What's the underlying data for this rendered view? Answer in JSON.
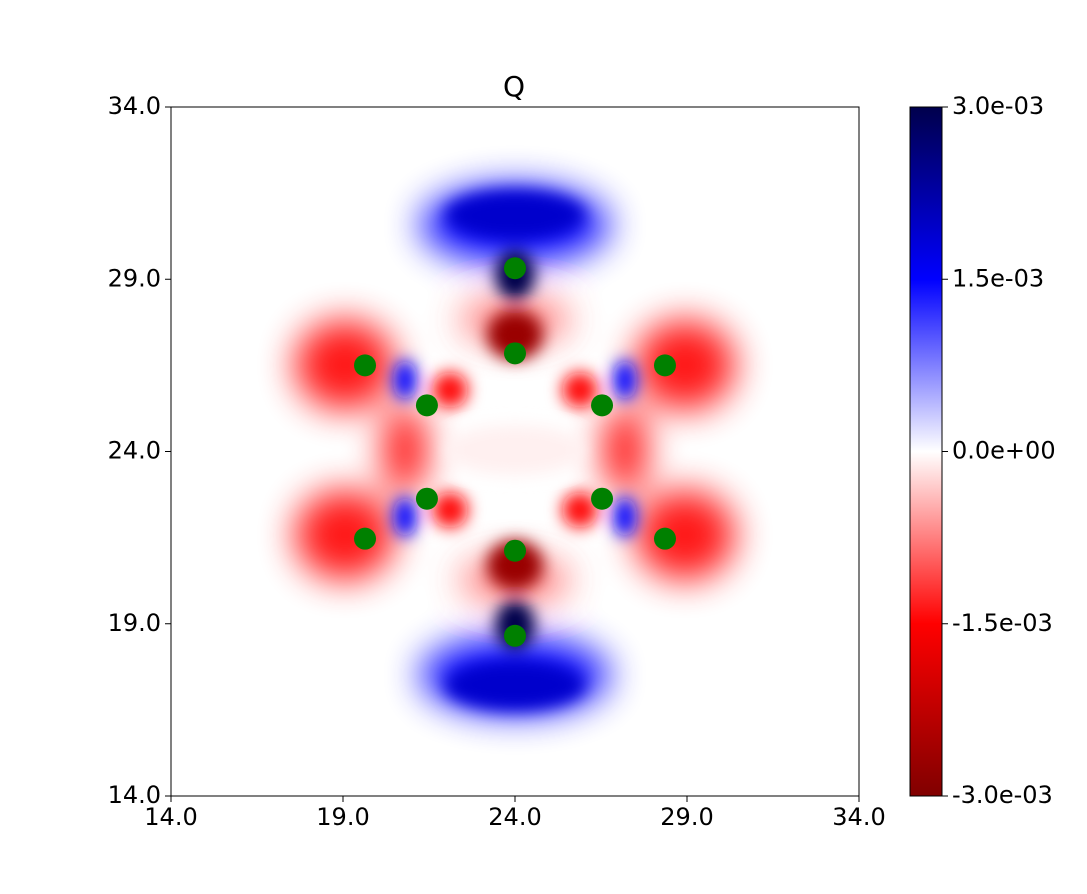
{
  "chart_data": {
    "type": "scatter",
    "title": "Q",
    "points_color": "#008000",
    "x": [
      24.0,
      24.0,
      19.64,
      28.36,
      21.44,
      26.53,
      21.44,
      26.53,
      19.64,
      28.36,
      24.0,
      24.0
    ],
    "values": [
      29.32,
      26.85,
      26.5,
      26.5,
      25.34,
      25.34,
      22.63,
      22.63,
      21.47,
      21.47,
      21.12,
      18.65
    ],
    "xlim": [
      14,
      34
    ],
    "ylim": [
      14,
      34
    ],
    "xticks": [
      {
        "value": 14,
        "label": "14.0"
      },
      {
        "value": 19,
        "label": "19.0"
      },
      {
        "value": 24,
        "label": "24.0"
      },
      {
        "value": 29,
        "label": "29.0"
      },
      {
        "value": 34,
        "label": "34.0"
      }
    ],
    "yticks": [
      {
        "value": 14,
        "label": "14.0"
      },
      {
        "value": 19,
        "label": "19.0"
      },
      {
        "value": 24,
        "label": "24.0"
      },
      {
        "value": 29,
        "label": "29.0"
      },
      {
        "value": 34,
        "label": "34.0"
      }
    ],
    "colorbar": {
      "lim": [
        -0.003,
        0.003
      ],
      "colors": [
        "#800000",
        "#ff0000",
        "#ffffff",
        "#0000ff",
        "#00004c"
      ],
      "ticks": [
        {
          "value": -0.003,
          "label": "-3.0e-03"
        },
        {
          "value": -0.0015,
          "label": "-1.5e-03"
        },
        {
          "value": 0,
          "label": "0.0e+00"
        },
        {
          "value": 0.0015,
          "label": "1.5e-03"
        },
        {
          "value": 0.003,
          "label": "3.0e-03"
        }
      ]
    }
  }
}
